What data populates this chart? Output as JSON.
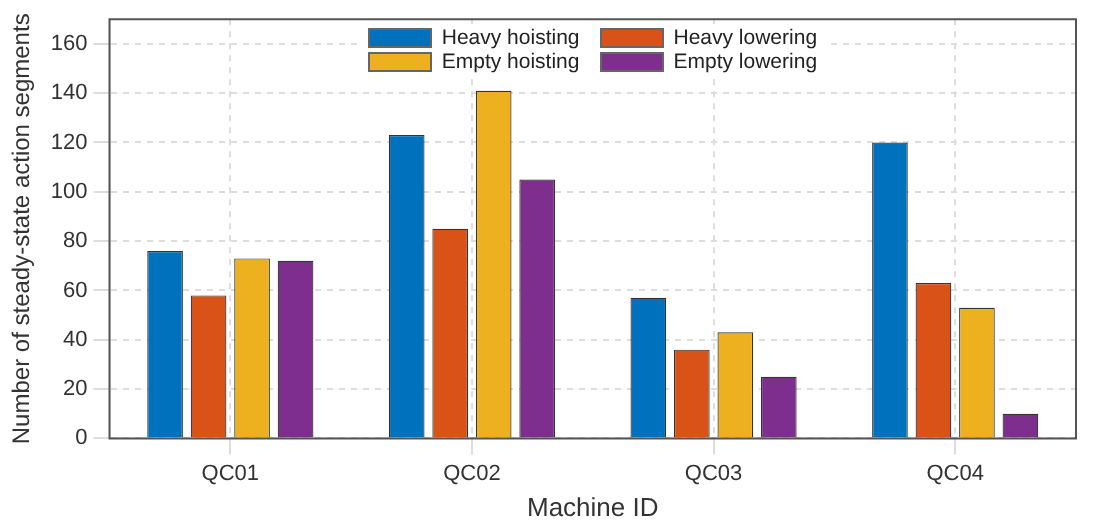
{
  "chart_data": {
    "type": "bar",
    "xlabel": "Machine ID",
    "ylabel": "Number of steady-state action segments",
    "categories": [
      "QC01",
      "QC02",
      "QC03",
      "QC04"
    ],
    "series": [
      {
        "name": "Heavy hoisting",
        "color": "#0072bd",
        "values": [
          76,
          123,
          57,
          120
        ]
      },
      {
        "name": "Heavy lowering",
        "color": "#d95319",
        "values": [
          58,
          85,
          36,
          63
        ]
      },
      {
        "name": "Empty hoisting",
        "color": "#edb120",
        "values": [
          73,
          141,
          43,
          53
        ]
      },
      {
        "name": "Empty lowering",
        "color": "#7e2f8e",
        "values": [
          72,
          105,
          25,
          10
        ]
      }
    ],
    "ylim": [
      0,
      170
    ],
    "yticks": [
      0,
      20,
      40,
      60,
      80,
      100,
      120,
      140,
      160
    ],
    "grid": true,
    "legend": "top"
  }
}
